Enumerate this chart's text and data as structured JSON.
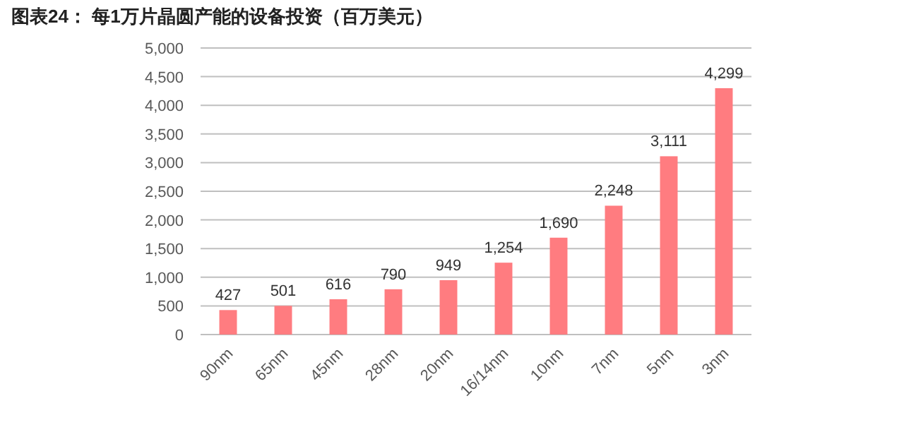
{
  "chart_data": {
    "type": "bar",
    "title": "图表24：  每1万片晶圆产能的设备投资（百万美元）",
    "categories": [
      "90nm",
      "65nm",
      "45nm",
      "28nm",
      "20nm",
      "16/14nm",
      "10nm",
      "7nm",
      "5nm",
      "3nm"
    ],
    "values": [
      427,
      501,
      616,
      790,
      949,
      1254,
      1690,
      2248,
      3111,
      4299
    ],
    "value_labels": [
      "427",
      "501",
      "616",
      "790",
      "949",
      "1,254",
      "1,690",
      "2,248",
      "3,111",
      "4,299"
    ],
    "color": "#ff7c80",
    "ylim": [
      0,
      5000
    ],
    "yticks": [
      {
        "value": 0,
        "label": "0"
      },
      {
        "value": 500,
        "label": "500"
      },
      {
        "value": 1000,
        "label": "1,000"
      },
      {
        "value": 1500,
        "label": "1,500"
      },
      {
        "value": 2000,
        "label": "2,000"
      },
      {
        "value": 2500,
        "label": "2,500"
      },
      {
        "value": 3000,
        "label": "3,000"
      },
      {
        "value": 3500,
        "label": "3,500"
      },
      {
        "value": 4000,
        "label": "4,000"
      },
      {
        "value": 4500,
        "label": "4,500"
      },
      {
        "value": 5000,
        "label": "5,000"
      }
    ],
    "grid": "y"
  }
}
